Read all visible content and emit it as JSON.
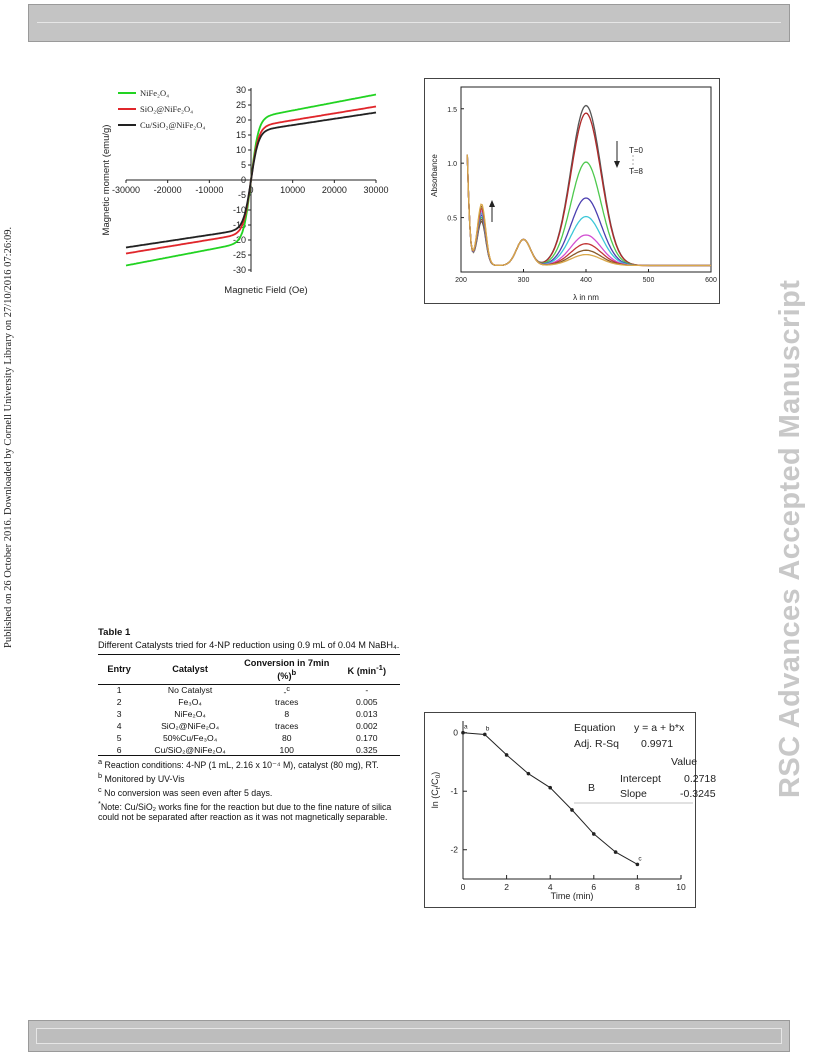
{
  "side_note": "Published on 26 October 2016. Downloaded by Cornell University Library on 27/10/2016 07:26:09.",
  "watermark": "RSC Advances Accepted Manuscript",
  "fig_vsm": {
    "legend": [
      "NiFe₂O₄",
      "SiO₂@NiFe₂O₄",
      "Cu/SiO₂@NiFe₂O₄"
    ],
    "colors": [
      "#22d322",
      "#e0262b",
      "#222222"
    ],
    "xlabel": "Magnetic Field (Oe)",
    "ylabel": "Magnetic moment (emu/g)",
    "xticks": [
      "-30000",
      "-20000",
      "-10000",
      "0",
      "10000",
      "20000",
      "30000"
    ],
    "yticks": [
      "30",
      "25",
      "20",
      "15",
      "10",
      "5",
      "0",
      "-5",
      "-10",
      "-15",
      "-20",
      "-25",
      "-30"
    ]
  },
  "fig_uv": {
    "xlabel": "λ in nm",
    "ylabel": "Absorbance",
    "xticks": [
      "200",
      "300",
      "400",
      "500",
      "600"
    ],
    "yticks": [
      "1.5",
      "1.0",
      "0.5"
    ],
    "t_start": "T=0",
    "t_end": "T=8",
    "colors": [
      "#555555",
      "#b02a2a",
      "#4ec94e",
      "#4b3fb0",
      "#3cc7d8",
      "#d24fd2",
      "#c23636",
      "#8a5a2a",
      "#d9a84a"
    ]
  },
  "table": {
    "title": "Table 1",
    "caption": "Different Catalysts tried for 4-NP reduction using 0.9 mL of 0.04 M NaBH₄.",
    "headers": {
      "entry": "Entry",
      "catalyst": "Catalyst",
      "conversion": "Conversion in 7min (%)",
      "conv_sup": "b",
      "k": "K (min",
      "k_sup": "-1",
      "k_end": ")"
    },
    "rows": [
      {
        "entry": "1",
        "catalyst": "No Catalyst",
        "conversion": "-",
        "conv_sup": "c",
        "k": "-"
      },
      {
        "entry": "2",
        "catalyst": "Fe₃O₄",
        "conversion": "traces",
        "conv_sup": "",
        "k": "0.005"
      },
      {
        "entry": "3",
        "catalyst": "NiFe₂O₄",
        "conversion": "8",
        "conv_sup": "",
        "k": "0.013"
      },
      {
        "entry": "4",
        "catalyst": "SiO₂@NiFe₂O₄",
        "conversion": "traces",
        "conv_sup": "",
        "k": "0.002"
      },
      {
        "entry": "5",
        "catalyst": "50%Cu/Fe₃O₄",
        "conversion": "80",
        "conv_sup": "",
        "k": "0.170"
      },
      {
        "entry": "6",
        "catalyst": "Cu/SiO₂@NiFe₂O₄",
        "conversion": "100",
        "conv_sup": "",
        "k": "0.325"
      }
    ],
    "notes": [
      {
        "sup": "a",
        "text": " Reaction conditions: 4-NP (1 mL, 2.16 x 10⁻⁴ M), catalyst (80 mg), RT."
      },
      {
        "sup": "b",
        "text": " Monitored by UV-Vis"
      },
      {
        "sup": "c",
        "text": " No conversion was seen even after 5 days."
      },
      {
        "sup": "*",
        "text": "Note: Cu/SiO₂ works fine for the reaction but due to the fine nature of silica could not be separated after reaction as it was not magnetically separable."
      }
    ]
  },
  "chart_data": [
    {
      "type": "line",
      "xlabel": "Magnetic Field (Oe)",
      "ylabel": "Magnetic moment (emu/g)",
      "xlim": [
        -30000,
        30000
      ],
      "ylim": [
        -30,
        30
      ],
      "series": [
        {
          "name": "NiFe₂O₄",
          "x": [
            -30000,
            -20000,
            -10000,
            -5000,
            -2000,
            0,
            2000,
            5000,
            10000,
            20000,
            30000
          ],
          "values": [
            -28.5,
            -26.5,
            -22,
            -18,
            -10,
            0,
            10,
            18,
            22,
            26.5,
            28.5
          ]
        },
        {
          "name": "SiO₂@NiFe₂O₄",
          "x": [
            -30000,
            -20000,
            -10000,
            -5000,
            -2000,
            0,
            2000,
            5000,
            10000,
            20000,
            30000
          ],
          "values": [
            -24.5,
            -22.5,
            -19,
            -16,
            -9,
            0,
            9,
            16,
            19,
            22.5,
            24.5
          ]
        },
        {
          "name": "Cu/SiO₂@NiFe₂O₄",
          "x": [
            -30000,
            -20000,
            -10000,
            -5000,
            -2000,
            0,
            2000,
            5000,
            10000,
            20000,
            30000
          ],
          "values": [
            -22.5,
            -21,
            -18,
            -15,
            -8.5,
            0,
            8.5,
            15,
            18,
            21,
            22.5
          ]
        }
      ]
    },
    {
      "type": "line",
      "xlabel": "λ in nm",
      "ylabel": "Absorbance",
      "xlim": [
        200,
        600
      ],
      "ylim": [
        0,
        1.7
      ],
      "peak_nm": 400,
      "peak_values": [
        1.47,
        1.4,
        0.95,
        0.62,
        0.45,
        0.28,
        0.2,
        0.14,
        0.1
      ]
    },
    {
      "type": "scatter",
      "xlabel": "Time (min)",
      "ylabel": "ln (Cₜ/C₀)",
      "xlim": [
        0,
        10
      ],
      "ylim": [
        -2.5,
        0.2
      ],
      "x": [
        0,
        1,
        2,
        3,
        4,
        5,
        6,
        7,
        8
      ],
      "values": [
        0.0,
        -0.03,
        -0.38,
        -0.7,
        -0.94,
        -1.32,
        -1.73,
        -2.04,
        -2.25
      ],
      "point_labels": [
        "a",
        "b",
        "",
        "",
        "",
        "",
        "",
        "",
        "c"
      ],
      "fit": {
        "equation_label": "Equation",
        "equation": "y = a + b*x",
        "r2_label": "Adj. R-Sq",
        "r2": "0.9971",
        "value_header": "Value",
        "series_label": "B",
        "intercept_label": "Intercept",
        "intercept": "0.2718",
        "slope_label": "Slope",
        "slope": "-0.3245"
      },
      "xticks": [
        "0",
        "2",
        "4",
        "6",
        "8",
        "10"
      ],
      "yticks": [
        "0",
        "-1",
        "-2"
      ],
      "xlabel_text": "Time (min)",
      "ylabel_main": "ln (C",
      "ylabel_sub1": "t",
      "ylabel_mid": "/C",
      "ylabel_sub2": "0",
      "ylabel_end": ")"
    }
  ]
}
